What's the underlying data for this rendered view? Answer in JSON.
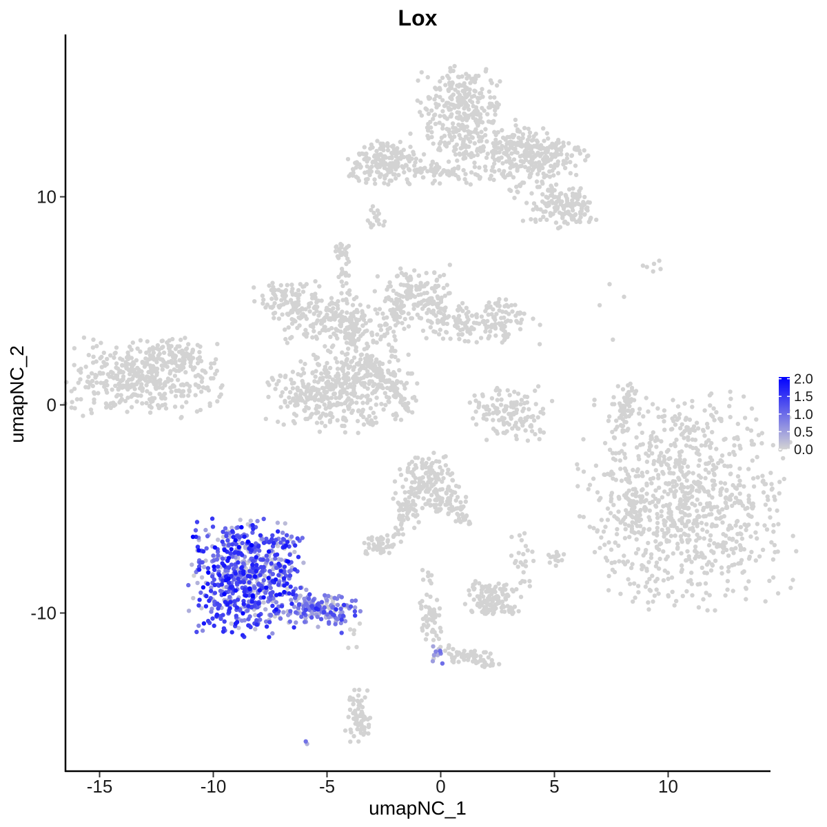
{
  "chart_data": {
    "type": "scatter",
    "title": "Lox",
    "xlabel": "umapNC_1",
    "ylabel": "umapNC_2",
    "xlim": [
      -16.5,
      14.5
    ],
    "ylim": [
      -17.6,
      17.8
    ],
    "x_ticks": [
      -15,
      -10,
      -5,
      0,
      5,
      10
    ],
    "x_tick_labels": [
      "-15",
      "-10",
      "-5",
      "0",
      "5",
      "10"
    ],
    "y_ticks": [
      -10,
      0,
      10
    ],
    "y_tick_labels": [
      "-10",
      "0",
      "10"
    ],
    "grid": false,
    "legend": {
      "position": "right",
      "type": "colorbar",
      "labels": [
        "2.0",
        "1.5",
        "1.0",
        "0.5",
        "0.0"
      ],
      "values": [
        2.0,
        1.5,
        1.0,
        0.5,
        0.0
      ],
      "range": [
        0,
        2.05
      ]
    },
    "colors": {
      "low": "#d3d3d3",
      "high": "#0000ff"
    },
    "clusters": [
      {
        "cx": 10.8,
        "cy": -4.5,
        "sx": 2.2,
        "sy": 2.5,
        "n": 900,
        "expr": 0
      },
      {
        "cx": 8.6,
        "cy": -5.0,
        "sx": 0.25,
        "sy": 0.6,
        "n": 40,
        "expr": 0
      },
      {
        "cx": -13.0,
        "cy": 1.3,
        "sx": 1.6,
        "sy": 0.9,
        "n": 420,
        "expr": 0
      },
      {
        "cx": -11.5,
        "cy": 2.3,
        "sx": 0.5,
        "sy": 0.4,
        "n": 40,
        "expr": 0
      },
      {
        "cx": 0.9,
        "cy": 14.0,
        "sx": 0.9,
        "sy": 1.1,
        "n": 320,
        "expr": 0
      },
      {
        "cx": 4.0,
        "cy": 12.0,
        "sx": 1.2,
        "sy": 0.6,
        "n": 220,
        "expr": 0
      },
      {
        "cx": 5.3,
        "cy": 9.5,
        "sx": 0.8,
        "sy": 0.5,
        "n": 130,
        "expr": 0
      },
      {
        "cx": -2.5,
        "cy": 11.6,
        "sx": 0.8,
        "sy": 0.5,
        "n": 170,
        "expr": 0
      },
      {
        "cx": 0.8,
        "cy": 11.1,
        "sx": 1.2,
        "sy": 0.25,
        "n": 50,
        "expr": 0
      },
      {
        "cx": -2.8,
        "cy": 8.9,
        "sx": 0.2,
        "sy": 0.3,
        "n": 18,
        "expr": 0
      },
      {
        "cx": -3.5,
        "cy": 1.5,
        "sx": 1.0,
        "sy": 1.3,
        "n": 280,
        "expr": 0
      },
      {
        "cx": -5.5,
        "cy": 0.6,
        "sx": 1.0,
        "sy": 0.8,
        "n": 220,
        "expr": 0
      },
      {
        "cx": -6.5,
        "cy": 5.0,
        "sx": 0.8,
        "sy": 0.5,
        "n": 110,
        "expr": 0
      },
      {
        "cx": -4.8,
        "cy": 3.9,
        "sx": 1.0,
        "sy": 0.5,
        "n": 110,
        "expr": 0
      },
      {
        "cx": -1.2,
        "cy": 5.2,
        "sx": 0.8,
        "sy": 0.7,
        "n": 150,
        "expr": 0
      },
      {
        "cx": 1.8,
        "cy": 4.0,
        "sx": 1.2,
        "sy": 0.5,
        "n": 170,
        "expr": 0
      },
      {
        "cx": -4.4,
        "cy": 7.4,
        "sx": 0.2,
        "sy": 0.2,
        "n": 20,
        "expr": 0
      },
      {
        "cx": -2.0,
        "cy": 1.0,
        "sx": 0.6,
        "sy": 0.4,
        "n": 25,
        "expr": 0
      },
      {
        "cx": 3.2,
        "cy": -0.4,
        "sx": 0.9,
        "sy": 0.6,
        "n": 130,
        "expr": 0
      },
      {
        "cx": 8.1,
        "cy": -0.2,
        "sx": 0.2,
        "sy": 0.6,
        "n": 35,
        "expr": 0
      },
      {
        "cx": -0.6,
        "cy": -3.7,
        "sx": 0.7,
        "sy": 0.7,
        "n": 170,
        "expr": 0
      },
      {
        "cx": -2.6,
        "cy": -6.7,
        "sx": 0.4,
        "sy": 0.25,
        "n": 45,
        "expr": 0
      },
      {
        "cx": -1.5,
        "cy": -5.3,
        "sx": 0.3,
        "sy": 0.5,
        "n": 25,
        "expr": 0
      },
      {
        "cx": 0.9,
        "cy": -5.2,
        "sx": 0.3,
        "sy": 0.4,
        "n": 20,
        "expr": 0
      },
      {
        "cx": 2.3,
        "cy": -9.3,
        "sx": 0.6,
        "sy": 0.4,
        "n": 120,
        "expr": 0
      },
      {
        "cx": 3.5,
        "cy": -7.5,
        "sx": 0.3,
        "sy": 0.7,
        "n": 25,
        "expr": 0
      },
      {
        "cx": 5.0,
        "cy": -7.3,
        "sx": 0.2,
        "sy": 0.2,
        "n": 15,
        "expr": 0
      },
      {
        "cx": -0.5,
        "cy": -10.2,
        "sx": 0.3,
        "sy": 0.5,
        "n": 30,
        "expr": 0
      },
      {
        "cx": 1.4,
        "cy": -12.1,
        "sx": 0.7,
        "sy": 0.3,
        "n": 35,
        "expr": 0
      },
      {
        "cx": -3.6,
        "cy": -15.0,
        "sx": 0.3,
        "sy": 0.6,
        "n": 45,
        "expr": 0
      },
      {
        "cx": 9.3,
        "cy": 6.7,
        "sx": 0.3,
        "sy": 0.2,
        "n": 6,
        "expr": 0
      },
      {
        "cx": 7.6,
        "cy": 4.7,
        "sx": 0.6,
        "sy": 1.0,
        "n": 4,
        "expr": 0
      },
      {
        "cx": -8.5,
        "cy": -8.3,
        "sx": 1.2,
        "sy": 1.3,
        "n": 700,
        "expr": 0.65
      },
      {
        "cx": -5.5,
        "cy": -9.8,
        "sx": 0.9,
        "sy": 0.4,
        "n": 110,
        "expr": 0.45
      },
      {
        "cx": -0.2,
        "cy": -12.0,
        "sx": 0.2,
        "sy": 0.3,
        "n": 12,
        "expr": 0.35
      },
      {
        "cx": -6.0,
        "cy": -16.3,
        "sx": 0.1,
        "sy": 0.1,
        "n": 3,
        "expr": 0.7
      }
    ],
    "strands": [
      {
        "from": [
          -3.3,
          2.2
        ],
        "to": [
          -1.2,
          -0.3
        ],
        "n": 60,
        "jitter": 0.12,
        "expr": 0
      },
      {
        "from": [
          -5.0,
          4.8
        ],
        "to": [
          -3.5,
          3.0
        ],
        "n": 40,
        "jitter": 0.2,
        "expr": 0
      },
      {
        "from": [
          -4.3,
          7.0
        ],
        "to": [
          -3.8,
          3.0
        ],
        "n": 45,
        "jitter": 0.15,
        "expr": 0
      },
      {
        "from": [
          -2.6,
          3.3
        ],
        "to": [
          -1.2,
          5.8
        ],
        "n": 40,
        "jitter": 0.2,
        "expr": 0
      },
      {
        "from": [
          -1.0,
          11.3
        ],
        "to": [
          0.6,
          11.2
        ],
        "n": 25,
        "jitter": 0.12,
        "expr": 0
      },
      {
        "from": [
          1.0,
          12.2
        ],
        "to": [
          3.5,
          12.5
        ],
        "n": 30,
        "jitter": 0.3,
        "expr": 0
      },
      {
        "from": [
          3.2,
          13.5
        ],
        "to": [
          5.4,
          9.4
        ],
        "n": 45,
        "jitter": 0.25,
        "expr": 0
      },
      {
        "from": [
          2.5,
          12.0
        ],
        "to": [
          3.5,
          10.0
        ],
        "n": 20,
        "jitter": 0.2,
        "expr": 0
      },
      {
        "from": [
          -0.3,
          -4.3
        ],
        "to": [
          1.2,
          -5.7
        ],
        "n": 25,
        "jitter": 0.15,
        "expr": 0
      },
      {
        "from": [
          -1.0,
          -4.5
        ],
        "to": [
          -2.0,
          -6.3
        ],
        "n": 20,
        "jitter": 0.15,
        "expr": 0
      },
      {
        "from": [
          -0.5,
          -8.0
        ],
        "to": [
          -0.3,
          -11.2
        ],
        "n": 25,
        "jitter": 0.15,
        "expr": 0
      },
      {
        "from": [
          0.2,
          -11.7
        ],
        "to": [
          2.4,
          -12.5
        ],
        "n": 25,
        "jitter": 0.12,
        "expr": 0
      },
      {
        "from": [
          8.0,
          -0.4
        ],
        "to": [
          8.4,
          1.0
        ],
        "n": 20,
        "jitter": 0.1,
        "expr": 0
      },
      {
        "from": [
          -3.8,
          -14.0
        ],
        "to": [
          -3.3,
          -15.6
        ],
        "n": 20,
        "jitter": 0.15,
        "expr": 0
      },
      {
        "from": [
          -4.0,
          -10.3
        ],
        "to": [
          -3.7,
          -13.0
        ],
        "n": 6,
        "jitter": 0.3,
        "expr": 0
      },
      {
        "from": [
          -6.3,
          -9.5
        ],
        "to": [
          -4.2,
          -10.3
        ],
        "n": 45,
        "jitter": 0.25,
        "expr": 0.5
      }
    ]
  }
}
